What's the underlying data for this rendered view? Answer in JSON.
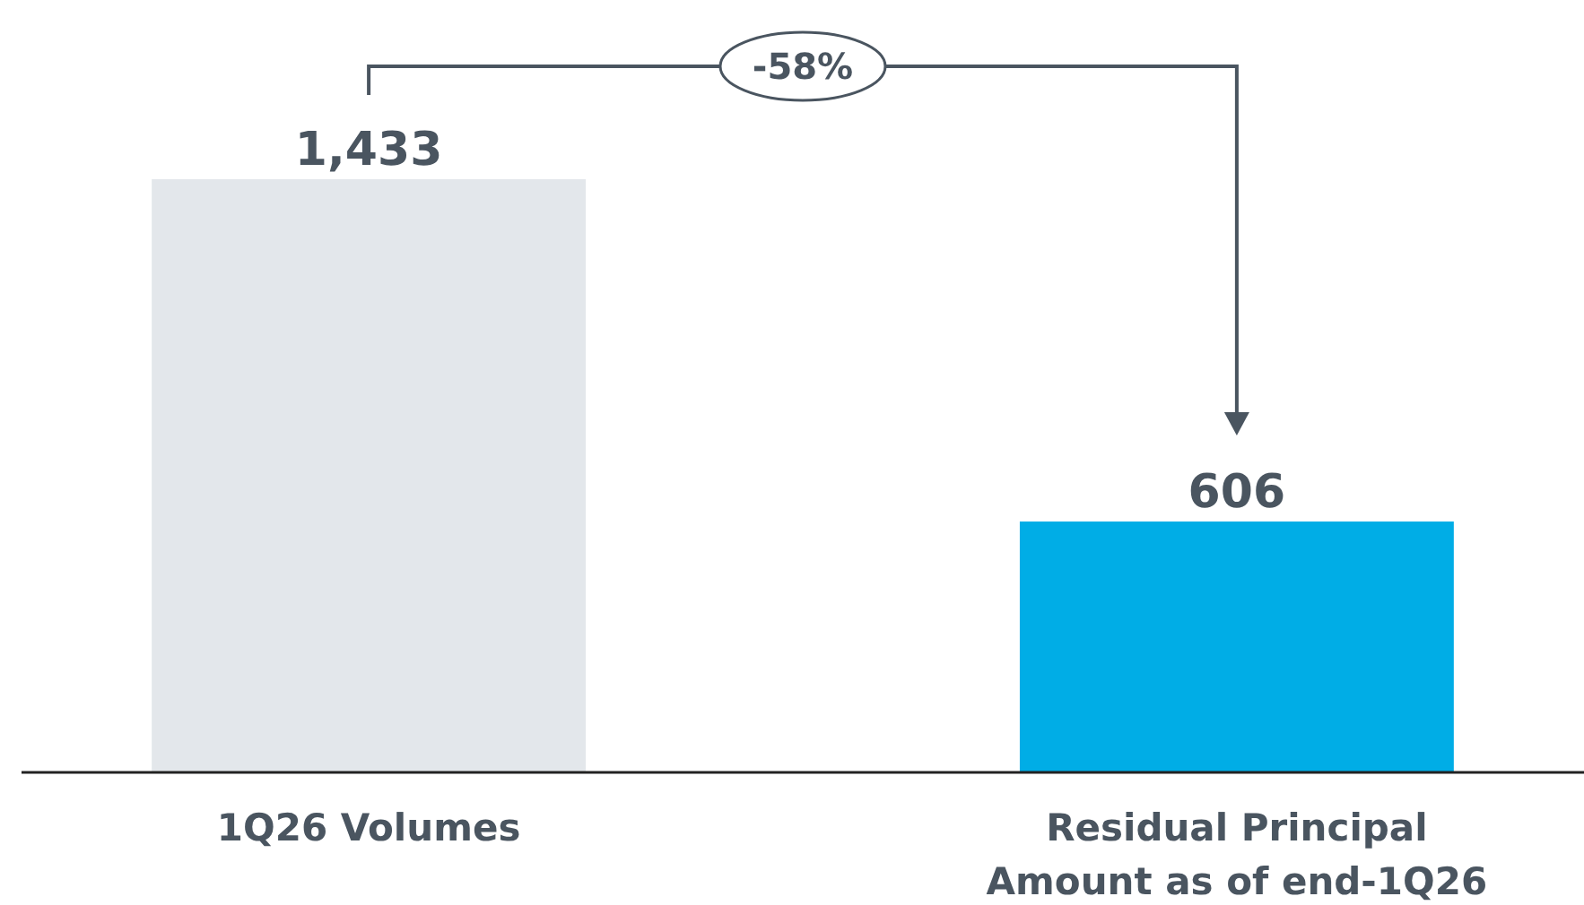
{
  "chart_data": {
    "type": "bar",
    "categories": [
      "1Q26 Volumes",
      "Residual Principal Amount as of end-1Q26"
    ],
    "values": [
      1433,
      606
    ],
    "colors": [
      "#e3e7eb",
      "#00ade6"
    ],
    "value_labels": [
      "1,433",
      "606"
    ],
    "annotations": [
      "-58%"
    ]
  }
}
